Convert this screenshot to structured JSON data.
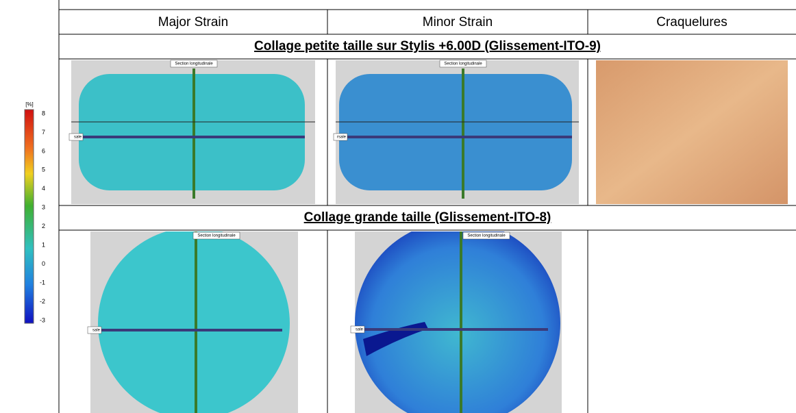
{
  "colorbar": {
    "unit": "[%]",
    "ticks": [
      8,
      7,
      6,
      5,
      4,
      3,
      2,
      1,
      0,
      -1,
      -2,
      -3
    ]
  },
  "table": {
    "headers": [
      "Major Strain",
      "Minor Strain",
      "Craquelures"
    ],
    "sections": [
      {
        "title": "Collage petite taille sur Stylis +6.00D (Glissement-ITO-9)",
        "images": [
          {
            "label": "Section longitudinale",
            "side_label": "sale"
          },
          {
            "label": "Section longitudinale",
            "side_label": "rsale"
          }
        ]
      },
      {
        "title": "Collage grande taille (Glissement-ITO-8)",
        "images": [
          {
            "label": "Section longitudinale",
            "side_label": "sale"
          },
          {
            "label": "Section longitudinale",
            "side_label": "sale"
          }
        ]
      }
    ]
  }
}
